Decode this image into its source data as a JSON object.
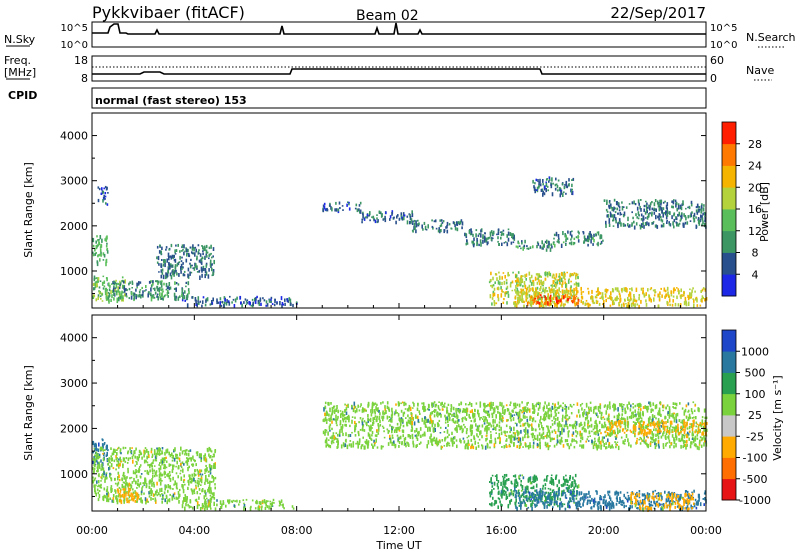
{
  "header": {
    "station": "Pykkvibaer (fitACF)",
    "beam": "Beam 02",
    "date": "22/Sep/2017"
  },
  "noise_panel": {
    "left_label": "N.Sky",
    "right_label": "N.Search",
    "left_ticks": [
      "10^5",
      "10^0"
    ],
    "right_ticks": [
      "10^5",
      "10^0"
    ]
  },
  "freq_panel": {
    "left_label_1": "Freq.",
    "left_label_2": "[MHz]",
    "right_label": "Nave",
    "left_ticks": [
      "18",
      "8"
    ],
    "right_ticks": [
      "60",
      "0"
    ]
  },
  "cpid_panel": {
    "label": "CPID",
    "mode_text": "normal (fast stereo) 153"
  },
  "power_panel": {
    "ylabel": "Slant Range [km]",
    "yticks": [
      "4000",
      "3000",
      "2000",
      "1000"
    ],
    "colorbar_label": "Power [dB]",
    "colorbar_ticks": [
      "28",
      "24",
      "20",
      "16",
      "12",
      "8",
      "4"
    ]
  },
  "velocity_panel": {
    "ylabel": "Slant Range [km]",
    "yticks": [
      "4000",
      "3000",
      "2000",
      "1000"
    ],
    "colorbar_label": "Velocity [m s⁻¹]",
    "colorbar_ticks": [
      "1000",
      "500",
      "100",
      "25",
      "-25",
      "-100",
      "-500",
      "-1000"
    ]
  },
  "xaxis": {
    "xlabel": "Time UT",
    "xticks": [
      "00:00",
      "04:00",
      "08:00",
      "12:00",
      "16:00",
      "20:00",
      "00:00"
    ]
  },
  "colors": {
    "power_scale": [
      "#1c28e6",
      "#28508c",
      "#3c9664",
      "#5abe5a",
      "#b4d23c",
      "#f5b400",
      "#ff7800",
      "#ff1e00"
    ],
    "velocity_scale": [
      "#e61414",
      "#ff6e00",
      "#ffaa00",
      "#c8c8c8",
      "#7ad23c",
      "#28a050",
      "#2878a0",
      "#1e46c8"
    ]
  },
  "chart_data": [
    {
      "type": "heatmap",
      "quantity": "power",
      "x_unit": "hours UT",
      "xlim": [
        0,
        24
      ],
      "ylim": [
        180,
        4500
      ],
      "zlim": [
        0,
        32
      ],
      "regions": [
        {
          "t": [
            0.0,
            0.6
          ],
          "r": [
            1200,
            1800
          ],
          "z": 12
        },
        {
          "t": [
            0.0,
            1.3
          ],
          "r": [
            350,
            900
          ],
          "z": 14
        },
        {
          "t": [
            0.5,
            3.8
          ],
          "r": [
            400,
            800
          ],
          "z": 10
        },
        {
          "t": [
            2.5,
            4.8
          ],
          "r": [
            900,
            1600
          ],
          "z": 8
        },
        {
          "t": [
            3.5,
            8.0
          ],
          "r": [
            250,
            450
          ],
          "z": 6
        },
        {
          "t": [
            0.2,
            0.6
          ],
          "r": [
            2500,
            2900
          ],
          "z": 6
        },
        {
          "t": [
            9.0,
            10.5
          ],
          "r": [
            2350,
            2550
          ],
          "z": 6
        },
        {
          "t": [
            10.5,
            12.5
          ],
          "r": [
            2100,
            2350
          ],
          "z": 7
        },
        {
          "t": [
            12.5,
            14.5
          ],
          "r": [
            1900,
            2150
          ],
          "z": 8
        },
        {
          "t": [
            14.5,
            16.5
          ],
          "r": [
            1600,
            1950
          ],
          "z": 8
        },
        {
          "t": [
            16.5,
            18.0
          ],
          "r": [
            1500,
            1700
          ],
          "z": 10
        },
        {
          "t": [
            18.0,
            20.0
          ],
          "r": [
            1600,
            1900
          ],
          "z": 10
        },
        {
          "t": [
            20.0,
            24.0
          ],
          "r": [
            2000,
            2600
          ],
          "z": 8
        },
        {
          "t": [
            17.2,
            18.8
          ],
          "r": [
            2700,
            3100
          ],
          "z": 7
        },
        {
          "t": [
            15.5,
            19.0
          ],
          "r": [
            300,
            1000
          ],
          "z": 18
        },
        {
          "t": [
            16.5,
            24.0
          ],
          "r": [
            250,
            650
          ],
          "z": 20
        },
        {
          "t": [
            17.0,
            19.0
          ],
          "r": [
            300,
            500
          ],
          "z": 28
        }
      ]
    },
    {
      "type": "heatmap",
      "quantity": "velocity",
      "x_unit": "hours UT",
      "xlim": [
        0,
        24
      ],
      "ylim": [
        180,
        4500
      ],
      "zlim": [
        -1000,
        1000
      ],
      "regions": [
        {
          "t": [
            0.0,
            0.6
          ],
          "r": [
            1200,
            1800
          ],
          "z": 500
        },
        {
          "t": [
            0.0,
            4.8
          ],
          "r": [
            400,
            1600
          ],
          "z": 0
        },
        {
          "t": [
            0.8,
            1.8
          ],
          "r": [
            400,
            700
          ],
          "z": -100
        },
        {
          "t": [
            3.5,
            8.0
          ],
          "r": [
            250,
            450
          ],
          "z": 0
        },
        {
          "t": [
            9.0,
            24.0
          ],
          "r": [
            1600,
            2600
          ],
          "z": 0
        },
        {
          "t": [
            20.0,
            24.0
          ],
          "r": [
            1900,
            2200
          ],
          "z": -100
        },
        {
          "t": [
            15.5,
            19.0
          ],
          "r": [
            300,
            1000
          ],
          "z": 100
        },
        {
          "t": [
            16.5,
            24.0
          ],
          "r": [
            250,
            650
          ],
          "z": 500
        },
        {
          "t": [
            21.0,
            23.5
          ],
          "r": [
            250,
            600
          ],
          "z": -100
        }
      ]
    }
  ]
}
